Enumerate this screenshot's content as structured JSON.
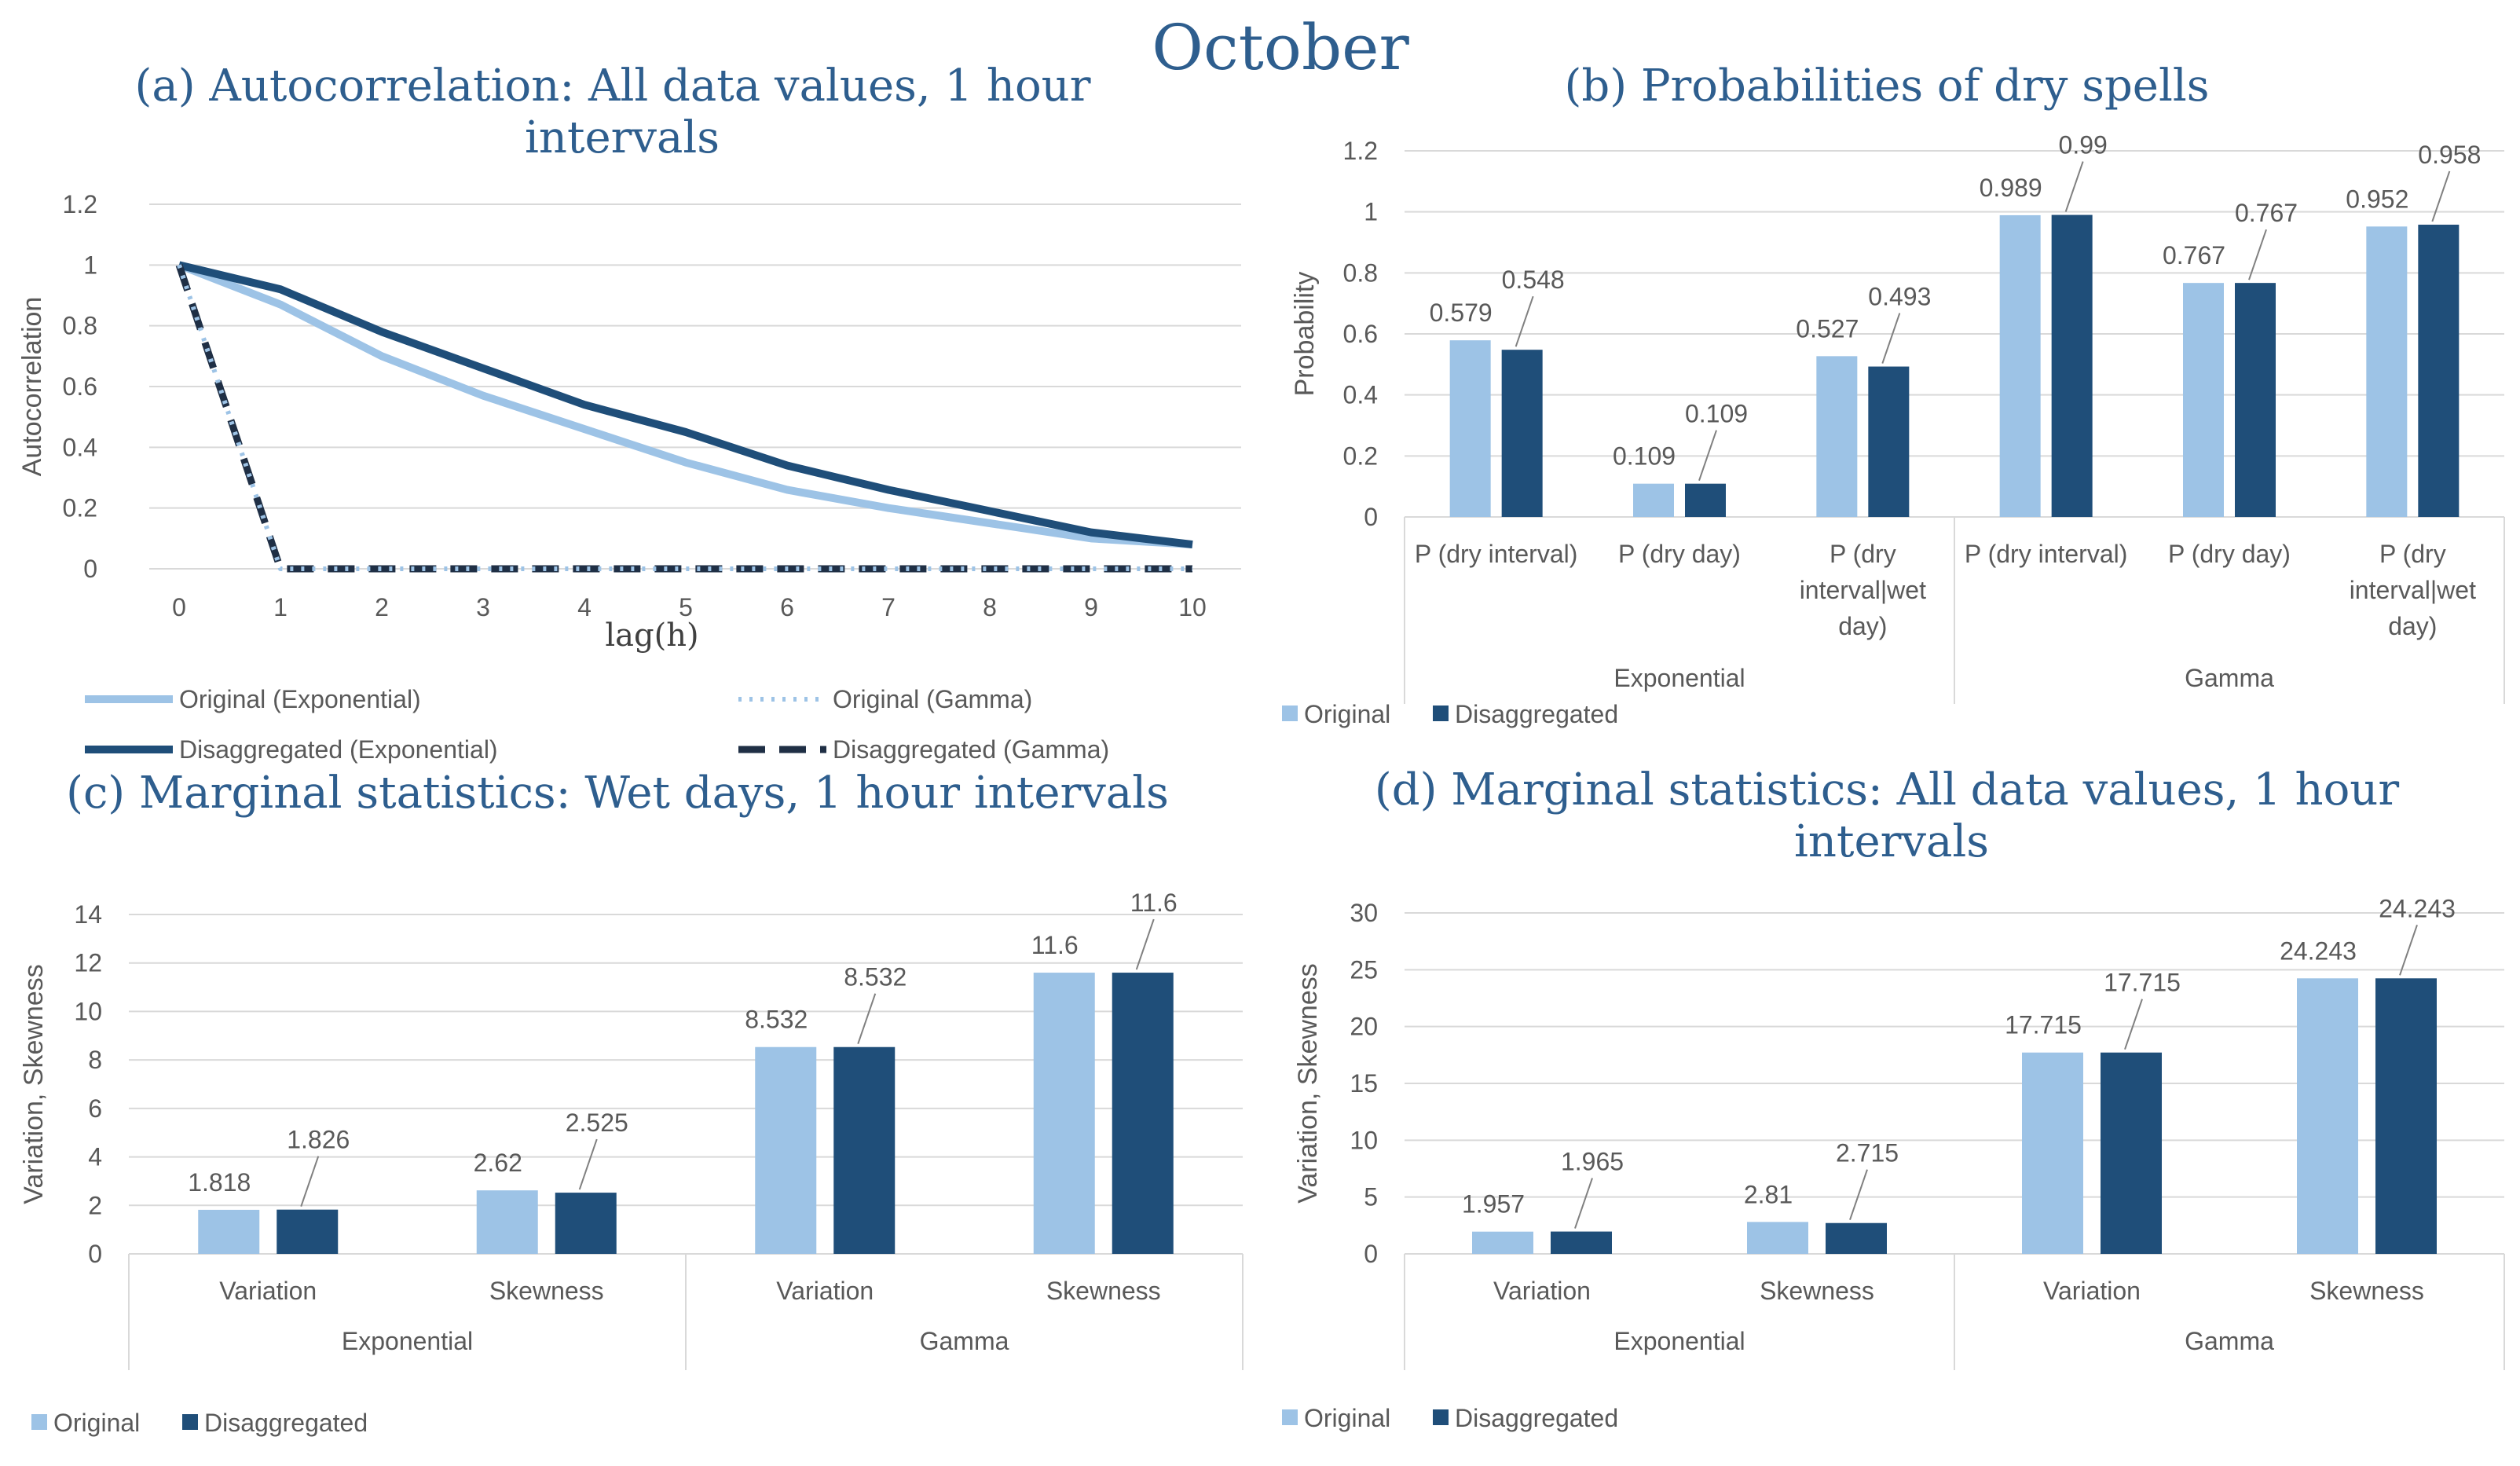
{
  "page_title": "October",
  "colors": {
    "original": "#9dc3e6",
    "disaggregated": "#1f4e79",
    "title": "#2e5e8e",
    "grid": "#d9d9d9",
    "text": "#595959"
  },
  "chart_data": [
    {
      "id": "a",
      "type": "line",
      "title_line1": "(a) Autocorrelation: All data values, 1 hour",
      "title_line2": "intervals",
      "xlabel": "lag(h)",
      "ylabel": "Autocorrelation",
      "x": [
        0,
        1,
        2,
        3,
        4,
        5,
        6,
        7,
        8,
        9,
        10
      ],
      "x_tick_labels": [
        "0",
        "1",
        "2",
        "3",
        "4",
        "5",
        "6",
        "7",
        "8",
        "9",
        "10"
      ],
      "y_tick_labels": [
        "0",
        "0.2",
        "0.4",
        "0.6",
        "0.8",
        "1",
        "1.2"
      ],
      "ylim": [
        0,
        1.2
      ],
      "grid": true,
      "series": [
        {
          "name": "Original (Exponential)",
          "style": "solid-light",
          "values": [
            1,
            0.87,
            0.7,
            0.57,
            0.46,
            0.35,
            0.26,
            0.2,
            0.15,
            0.1,
            0.08
          ]
        },
        {
          "name": "Original (Gamma)",
          "style": "dotted-light",
          "values": [
            1,
            0,
            0,
            0,
            0,
            0,
            0,
            0,
            0,
            0,
            0
          ]
        },
        {
          "name": "Disaggregated (Exponential)",
          "style": "solid-dark",
          "values": [
            1,
            0.92,
            0.78,
            0.66,
            0.54,
            0.45,
            0.34,
            0.26,
            0.19,
            0.12,
            0.08
          ]
        },
        {
          "name": "Disaggregated (Gamma)",
          "style": "dashed-dark",
          "values": [
            1,
            0,
            0,
            0,
            0,
            0,
            0,
            0,
            0,
            0,
            0
          ]
        }
      ]
    },
    {
      "id": "b",
      "type": "bar",
      "title": "(b) Probabilities of dry spells",
      "ylabel": "Probability",
      "ylim": [
        0,
        1.2
      ],
      "y_tick_labels": [
        "0",
        "0.2",
        "0.4",
        "0.6",
        "0.8",
        "1",
        "1.2"
      ],
      "categories": [
        [
          "P (dry interval)"
        ],
        [
          "P (dry day)"
        ],
        [
          "P (dry",
          "interval|wet",
          "day)"
        ],
        [
          "P (dry interval)"
        ],
        [
          "P (dry day)"
        ],
        [
          "P (dry",
          "interval|wet",
          "day)"
        ]
      ],
      "groups": [
        "Exponential",
        "Gamma"
      ],
      "series": [
        {
          "name": "Original",
          "values": [
            0.579,
            0.109,
            0.527,
            0.989,
            0.767,
            0.952
          ],
          "labels": [
            "0.579",
            "0.109",
            "0.527",
            "0.989",
            "0.767",
            "0.952"
          ]
        },
        {
          "name": "Disaggregated",
          "values": [
            0.548,
            0.109,
            0.493,
            0.99,
            0.767,
            0.958
          ],
          "labels": [
            "0.548",
            "0.109",
            "0.493",
            "0.99",
            "0.767",
            "0.958"
          ]
        }
      ],
      "legend": [
        "Original",
        "Disaggregated"
      ]
    },
    {
      "id": "c",
      "type": "bar",
      "title": "(c) Marginal statistics: Wet days, 1 hour intervals",
      "ylabel": "Variation, Skewness",
      "ylim": [
        0,
        14
      ],
      "y_tick_labels": [
        "0",
        "2",
        "4",
        "6",
        "8",
        "10",
        "12",
        "14"
      ],
      "categories": [
        [
          "Variation"
        ],
        [
          "Skewness"
        ],
        [
          "Variation"
        ],
        [
          "Skewness"
        ]
      ],
      "groups": [
        "Exponential",
        "Gamma"
      ],
      "series": [
        {
          "name": "Original",
          "values": [
            1.818,
            2.62,
            8.532,
            11.6
          ],
          "labels": [
            "1.818",
            "2.62",
            "8.532",
            "11.6"
          ]
        },
        {
          "name": "Disaggregated",
          "values": [
            1.826,
            2.525,
            8.532,
            11.6
          ],
          "labels": [
            "1.826",
            "2.525",
            "8.532",
            "11.6"
          ]
        }
      ],
      "legend": [
        "Original",
        "Disaggregated"
      ]
    },
    {
      "id": "d",
      "type": "bar",
      "title_line1": "(d) Marginal statistics: All data values, 1 hour",
      "title_line2": "intervals",
      "ylabel": "Variation, Skewness",
      "ylim": [
        0,
        30
      ],
      "y_tick_labels": [
        "0",
        "5",
        "10",
        "15",
        "20",
        "25",
        "30"
      ],
      "categories": [
        [
          "Variation"
        ],
        [
          "Skewness"
        ],
        [
          "Variation"
        ],
        [
          "Skewness"
        ]
      ],
      "groups": [
        "Exponential",
        "Gamma"
      ],
      "series": [
        {
          "name": "Original",
          "values": [
            1.957,
            2.81,
            17.715,
            24.243
          ],
          "labels": [
            "1.957",
            "2.81",
            "17.715",
            "24.243"
          ]
        },
        {
          "name": "Disaggregated",
          "values": [
            1.965,
            2.715,
            17.715,
            24.243
          ],
          "labels": [
            "1.965",
            "2.715",
            "17.715",
            "24.243"
          ]
        }
      ],
      "legend": [
        "Original",
        "Disaggregated"
      ]
    }
  ]
}
